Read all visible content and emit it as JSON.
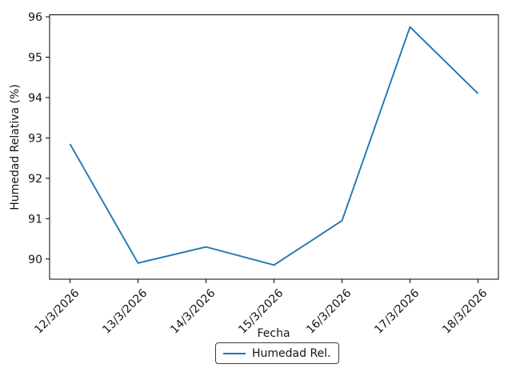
{
  "chart_data": {
    "type": "line",
    "xlabel": "Fecha",
    "ylabel": "Humedad Relativa (%)",
    "categories": [
      "12/3/2026",
      "13/3/2026",
      "14/3/2026",
      "15/3/2026",
      "16/3/2026",
      "17/3/2026",
      "18/3/2026"
    ],
    "series": [
      {
        "name": "Humedad Rel.",
        "color": "#1f77b4",
        "values": [
          92.85,
          89.9,
          90.3,
          89.85,
          90.95,
          95.75,
          94.1
        ]
      }
    ],
    "yticks": [
      90,
      91,
      92,
      93,
      94,
      95,
      96
    ],
    "ylim": [
      89.5,
      96.05
    ],
    "xlim": [
      -0.3,
      6.3
    ],
    "x_tick_rotation": 45,
    "grid": false,
    "legend_position": "bottom-center-outside",
    "frame_color": "#000000",
    "background_color": "#ffffff"
  }
}
